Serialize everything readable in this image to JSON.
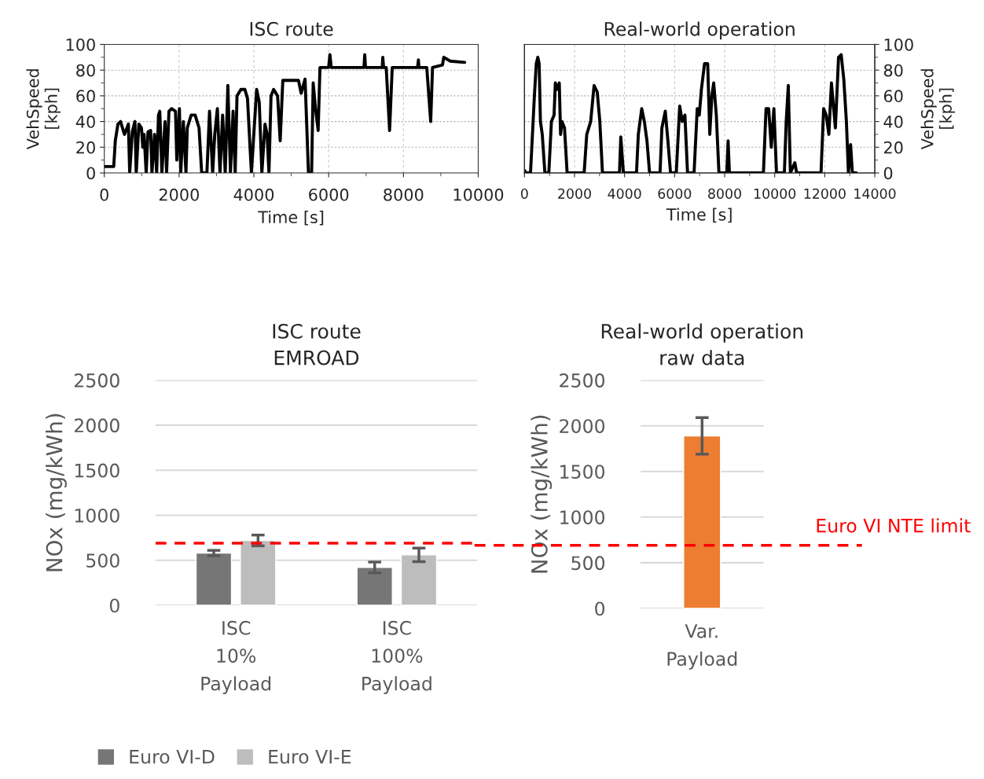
{
  "chart_data": [
    {
      "type": "line",
      "title": "ISC route",
      "xlabel": "Time [s]",
      "ylabel": "VehSpeed\n[kph]",
      "xlim": [
        0,
        10000
      ],
      "xticks": [
        0,
        2000,
        4000,
        6000,
        8000,
        10000
      ],
      "ylim": [
        0,
        100
      ],
      "yticks": [
        0,
        20,
        40,
        60,
        80,
        100
      ],
      "grid": true,
      "line_style": "solid",
      "series": [
        {
          "color": "#000000",
          "x": [
            0,
            252,
            294,
            364,
            434,
            539,
            644,
            679,
            749,
            819,
            854,
            924,
            994,
            1029,
            1064,
            1120,
            1169,
            1239,
            1274,
            1344,
            1400,
            1449,
            1484,
            1540,
            1624,
            1666,
            1729,
            1799,
            1904,
            1939,
            2009,
            2044,
            2114,
            2184,
            2219,
            2324,
            2429,
            2534,
            2604,
            2744,
            2814,
            2898,
            2954,
            3024,
            3094,
            3164,
            3234,
            3304,
            3374,
            3444,
            3500,
            3549,
            3654,
            3759,
            3829,
            3934,
            4074,
            4144,
            4214,
            4298,
            4354,
            4403,
            4459,
            4529,
            4634,
            4704,
            4774,
            5194,
            5264,
            5369,
            5460,
            5544,
            5586,
            5649,
            5719,
            5768,
            5999,
            6034,
            6069,
            6944,
            6965,
            6986,
            7434,
            7448,
            7469,
            7539,
            7630,
            7700,
            8379,
            8400,
            8414,
            8624,
            8729,
            8778,
            9044,
            9079,
            9254,
            9639
          ],
          "values": [
            5,
            5,
            25,
            38,
            40,
            30,
            38,
            0,
            32,
            40,
            0,
            38,
            35,
            20,
            30,
            0,
            32,
            33,
            0,
            30,
            0,
            45,
            48,
            0,
            40,
            0,
            48,
            50,
            48,
            10,
            50,
            0,
            40,
            0,
            35,
            45,
            45,
            35,
            0,
            0,
            48,
            0,
            30,
            50,
            0,
            45,
            0,
            68,
            0,
            48,
            0,
            60,
            65,
            65,
            58,
            0,
            65,
            55,
            0,
            38,
            30,
            0,
            60,
            65,
            60,
            25,
            72,
            72,
            62,
            73,
            0,
            0,
            70,
            50,
            33,
            82,
            82,
            92,
            82,
            82,
            92,
            82,
            82,
            90,
            82,
            82,
            33,
            82,
            82,
            88,
            82,
            82,
            40,
            82,
            84,
            90,
            87,
            86
          ]
        }
      ]
    },
    {
      "type": "line",
      "title": "Real-world operation",
      "xlabel": "Time [s]",
      "y2label": "VehSpeed\n[kph]",
      "xlim": [
        0,
        14000
      ],
      "xticks": [
        0,
        2000,
        4000,
        6000,
        8000,
        10000,
        12000,
        14000
      ],
      "y2lim": [
        0,
        100
      ],
      "y2ticks": [
        0,
        20,
        40,
        60,
        80,
        100
      ],
      "grid": true,
      "line_style": "solid",
      "series": [
        {
          "color": "#000000",
          "axis": "y2",
          "x": [
            0,
            63,
            241,
            293,
            397,
            471,
            533,
            586,
            638,
            711,
            816,
            973,
            1077,
            1182,
            1234,
            1318,
            1391,
            1443,
            1496,
            1600,
            1705,
            2385,
            2489,
            2646,
            2782,
            2908,
            3012,
            3117,
            3797,
            3849,
            3954,
            4477,
            4550,
            4686,
            4791,
            4895,
            5000,
            5418,
            5492,
            5627,
            5732,
            5837,
            6067,
            6203,
            6307,
            6412,
            6517,
            6778,
            6904,
            6987,
            7071,
            7196,
            7322,
            7406,
            7489,
            7563,
            7667,
            7772,
            8086,
            8138,
            8190,
            9550,
            9654,
            9759,
            9864,
            9968,
            10073,
            10387,
            10460,
            10544,
            10627,
            10805,
            10878,
            11851,
            11956,
            12060,
            12165,
            12268,
            12426,
            12552,
            12657,
            12761,
            12866,
            12947,
            13033,
            13106,
            13263
          ],
          "values": [
            2,
            0,
            0,
            20,
            60,
            85,
            90,
            85,
            40,
            30,
            0,
            0,
            40,
            45,
            70,
            65,
            70,
            30,
            40,
            35,
            0,
            0,
            30,
            40,
            68,
            63,
            40,
            0,
            0,
            28,
            0,
            0,
            30,
            50,
            40,
            25,
            0,
            0,
            35,
            48,
            25,
            0,
            0,
            52,
            40,
            45,
            0,
            0,
            50,
            45,
            65,
            85,
            85,
            30,
            60,
            70,
            45,
            0,
            0,
            25,
            0,
            0,
            50,
            50,
            20,
            50,
            0,
            0,
            40,
            68,
            0,
            8,
            0,
            0,
            50,
            45,
            30,
            70,
            35,
            90,
            92,
            73,
            40,
            0,
            22,
            0,
            0
          ]
        }
      ]
    },
    {
      "type": "bar",
      "title": "ISC route\nEMROAD",
      "ylabel": "NOx (mg/kWh)",
      "categories": [
        "ISC\n10%\nPayload",
        "ISC\n100%\nPayload"
      ],
      "ylim": [
        0,
        2500
      ],
      "yticks": [
        0,
        500,
        1000,
        1500,
        2000,
        2500
      ],
      "grid": "y",
      "legend": "bottom left",
      "ref_lines": [
        {
          "axis": "y",
          "value": 690,
          "color": "#ff0000",
          "line_style": "dashed"
        }
      ],
      "series": [
        {
          "name": "Euro VI-D",
          "color": "#767676",
          "values": [
            580,
            420
          ],
          "errors": [
            30,
            60
          ]
        },
        {
          "name": "Euro VI-E",
          "color": "#bdbdbd",
          "values": [
            720,
            560
          ],
          "errors": [
            60,
            75
          ]
        }
      ]
    },
    {
      "type": "bar",
      "title": "Real-world operation\nraw data",
      "ylabel": "NOx (mg/kWh)",
      "categories": [
        "Var.\nPayload"
      ],
      "ylim": [
        0,
        2500
      ],
      "yticks": [
        0,
        500,
        1000,
        1500,
        2000,
        2500
      ],
      "grid": "y",
      "ref_lines": [
        {
          "axis": "y",
          "value": 690,
          "label": "Euro VI NTE limit",
          "color": "#ff0000",
          "line_style": "dashed"
        }
      ],
      "series": [
        {
          "color": "#ed7d31",
          "values": [
            1890
          ],
          "errors": [
            200
          ]
        }
      ]
    }
  ]
}
